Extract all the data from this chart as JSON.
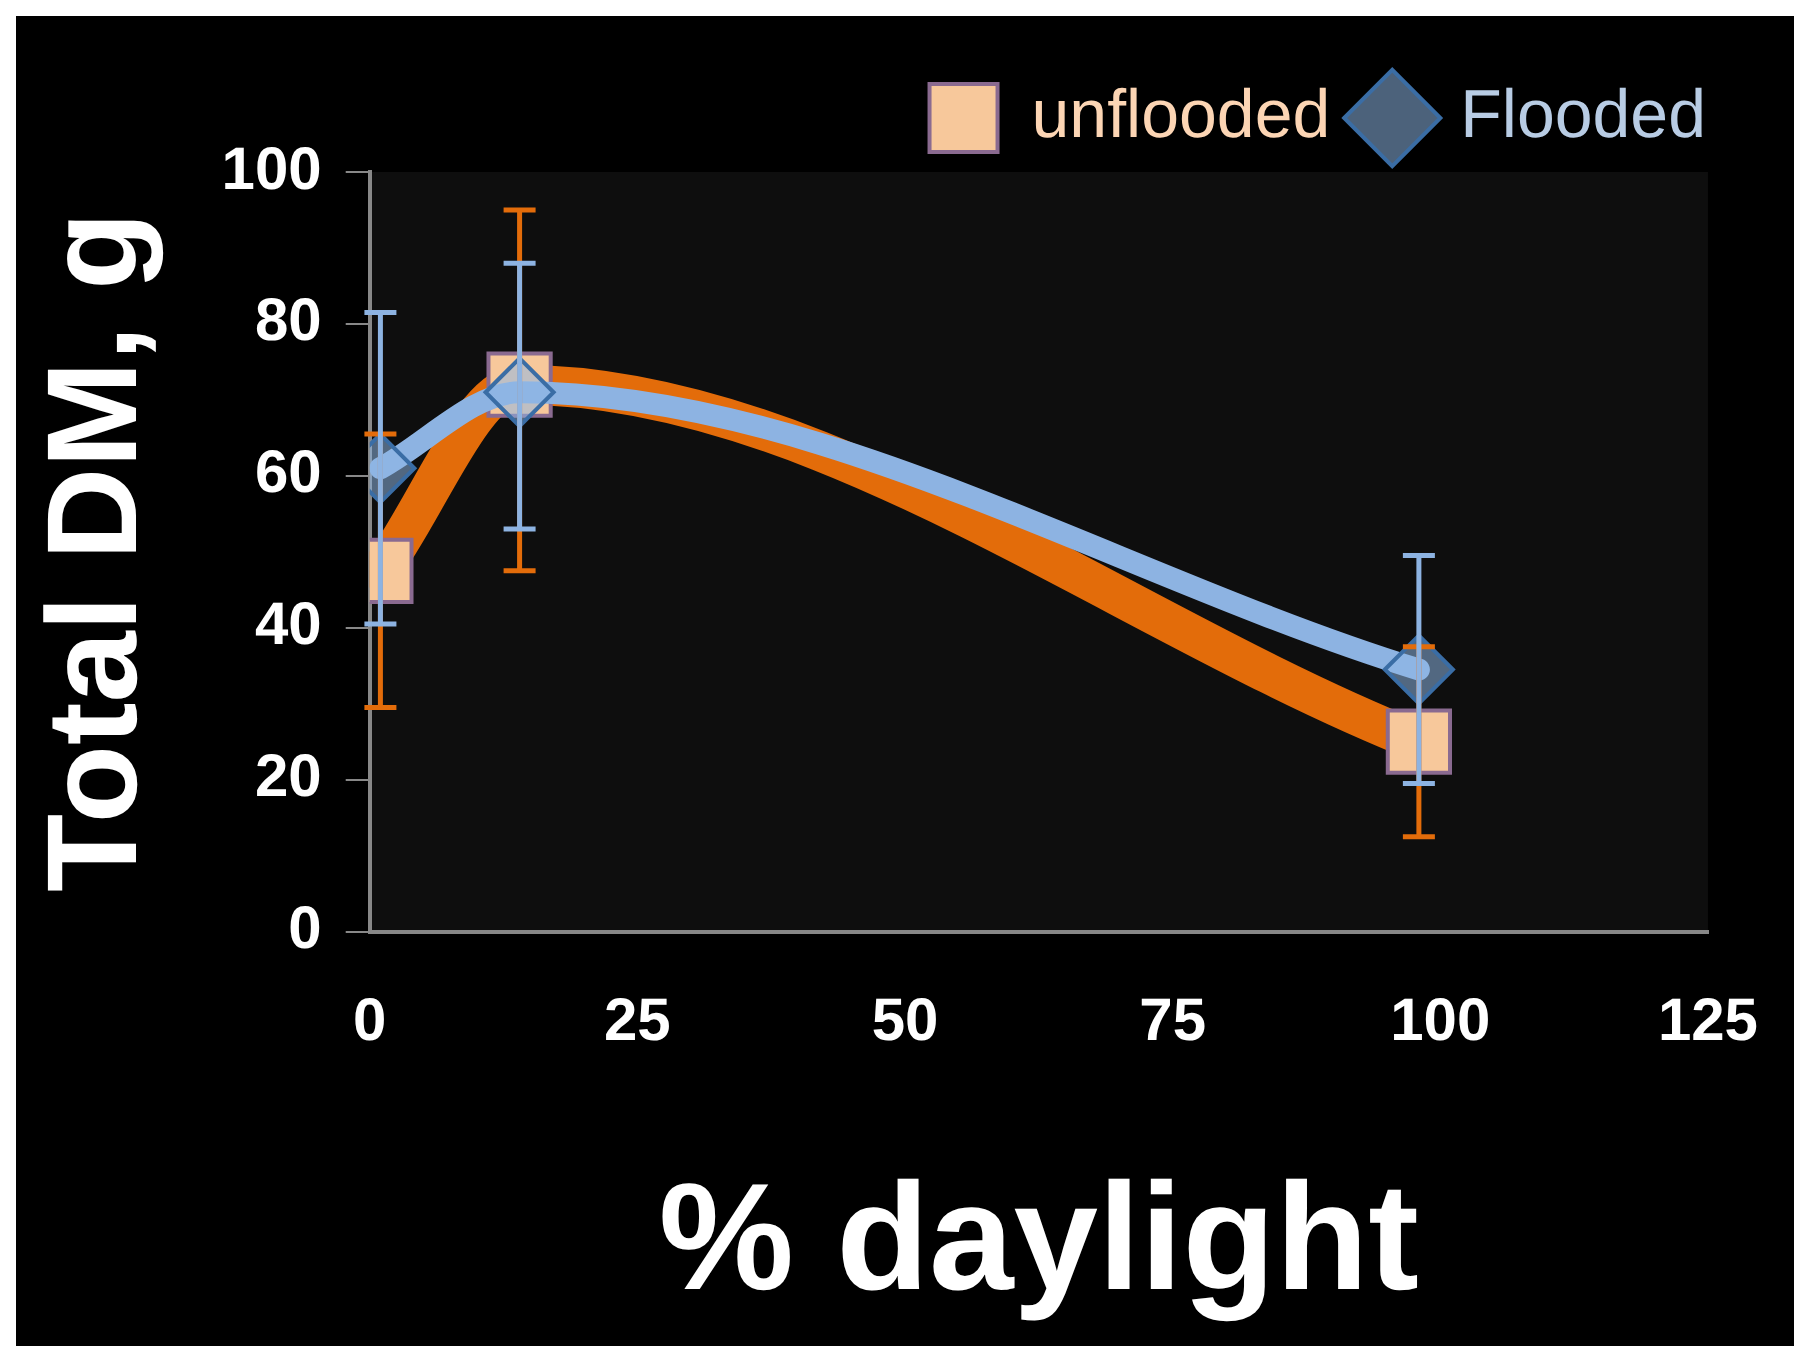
{
  "chart_data": {
    "type": "line",
    "xlabel": "% daylight",
    "ylabel": "Total DM, g",
    "xlim": [
      0,
      125
    ],
    "xticks": [
      0,
      25,
      50,
      75,
      100,
      125
    ],
    "ylim": [
      0,
      100
    ],
    "yticks": [
      0,
      20,
      40,
      60,
      80,
      100
    ],
    "grid": false,
    "legend": "top right",
    "series": [
      {
        "name": "unflooded",
        "color": "#e36c0a",
        "marker": "square",
        "x": [
          1,
          14,
          98
        ],
        "values": [
          47.5,
          72,
          25
        ],
        "errors": [
          [
            29.5,
            65.5
          ],
          [
            47.5,
            95
          ],
          [
            12.5,
            37.5
          ]
        ]
      },
      {
        "name": "Flooded",
        "color": "#8db3e2",
        "marker": "diamond",
        "x": [
          1,
          14,
          98
        ],
        "values": [
          61,
          71,
          34.5
        ],
        "errors": [
          [
            40.5,
            81.5
          ],
          [
            53,
            88
          ],
          [
            19.5,
            49.5
          ]
        ]
      }
    ]
  }
}
